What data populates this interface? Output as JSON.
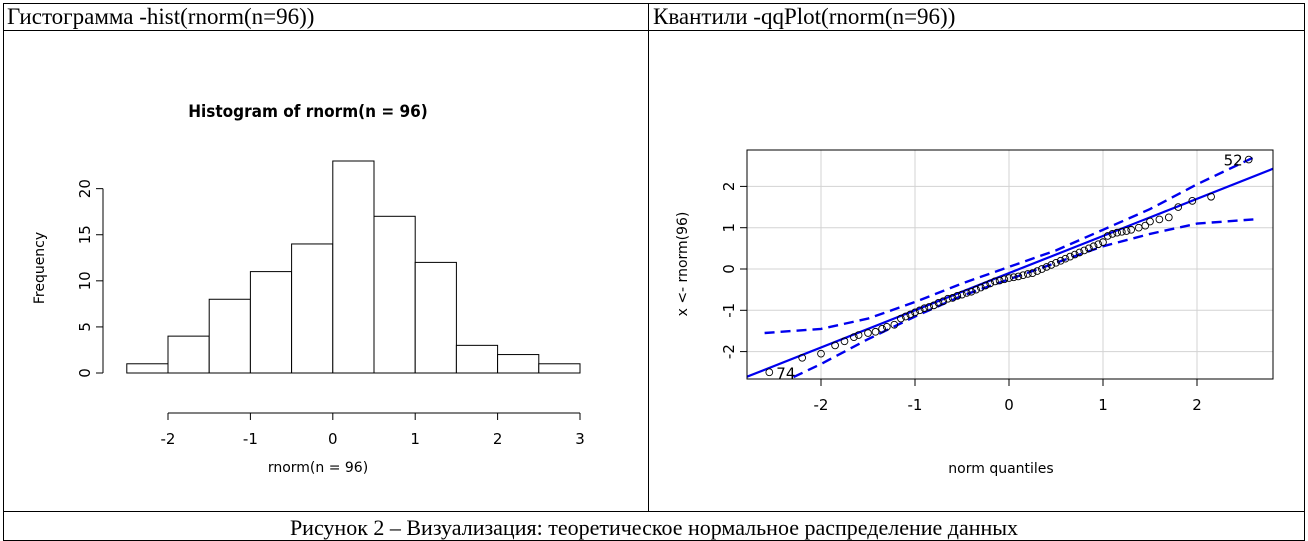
{
  "table": {
    "left_header": "Гистограмма -hist(rnorm(n=96))",
    "right_header": "Квантили -qqPlot(rnorm(n=96))",
    "caption": "Рисунок 2 – Визуализация: теоретическое нормальное распределение данных"
  },
  "chart_data": [
    {
      "type": "bar",
      "title": "Histogram of rnorm(n = 96)",
      "xlabel": "rnorm(n = 96)",
      "ylabel": "Frequency",
      "bins": [
        [
          -2.5,
          -2.0
        ],
        [
          -2.0,
          -1.5
        ],
        [
          -1.5,
          -1.0
        ],
        [
          -1.0,
          -0.5
        ],
        [
          -0.5,
          0.0
        ],
        [
          0.0,
          0.5
        ],
        [
          0.5,
          1.0
        ],
        [
          1.0,
          1.5
        ],
        [
          1.5,
          2.0
        ],
        [
          2.0,
          2.5
        ],
        [
          2.5,
          3.0
        ]
      ],
      "values": [
        1,
        4,
        8,
        11,
        14,
        23,
        17,
        12,
        3,
        2,
        1
      ],
      "xlim": [
        -2.5,
        3.0
      ],
      "ylim": [
        0,
        23
      ],
      "x_ticks": [
        "-2",
        "-1",
        "0",
        "1",
        "2",
        "3"
      ],
      "y_ticks": [
        "0",
        "5",
        "10",
        "15",
        "20"
      ],
      "grid": false
    },
    {
      "type": "scatter",
      "title": "",
      "xlabel": "norm quantiles",
      "ylabel": "x <- rnorm(96)",
      "xlim": [
        -2.8,
        2.8
      ],
      "ylim": [
        -2.7,
        2.9
      ],
      "x_ticks": [
        "-2",
        "-1",
        "0",
        "1",
        "2"
      ],
      "y_ticks": [
        "-2",
        "-1",
        "0",
        "1",
        "2"
      ],
      "grid": true,
      "point_labels": [
        {
          "label": "52",
          "x": 2.55,
          "y": 2.65
        },
        {
          "label": "74",
          "x": -2.55,
          "y": -2.5
        }
      ],
      "reference_line": {
        "slope": 0.9,
        "intercept": -0.1
      },
      "envelope_upper": [
        [
          -2.6,
          -1.55
        ],
        [
          -2.0,
          -1.45
        ],
        [
          -1.5,
          -1.2
        ],
        [
          -1.0,
          -0.8
        ],
        [
          -0.5,
          -0.35
        ],
        [
          0.0,
          0.05
        ],
        [
          0.5,
          0.45
        ],
        [
          1.0,
          0.95
        ],
        [
          1.5,
          1.45
        ],
        [
          2.0,
          2.05
        ],
        [
          2.6,
          2.7
        ]
      ],
      "envelope_lower": [
        [
          -2.6,
          -2.95
        ],
        [
          -2.0,
          -2.3
        ],
        [
          -1.5,
          -1.7
        ],
        [
          -1.0,
          -1.15
        ],
        [
          -0.5,
          -0.65
        ],
        [
          0.0,
          -0.25
        ],
        [
          0.5,
          0.15
        ],
        [
          1.0,
          0.55
        ],
        [
          1.5,
          0.85
        ],
        [
          2.0,
          1.1
        ],
        [
          2.6,
          1.2
        ]
      ],
      "points": [
        [
          -2.55,
          -2.5
        ],
        [
          -2.2,
          -2.15
        ],
        [
          -2.0,
          -2.05
        ],
        [
          -1.85,
          -1.85
        ],
        [
          -1.75,
          -1.75
        ],
        [
          -1.65,
          -1.65
        ],
        [
          -1.6,
          -1.6
        ],
        [
          -1.5,
          -1.55
        ],
        [
          -1.42,
          -1.52
        ],
        [
          -1.35,
          -1.45
        ],
        [
          -1.3,
          -1.4
        ],
        [
          -1.22,
          -1.35
        ],
        [
          -1.15,
          -1.2
        ],
        [
          -1.1,
          -1.15
        ],
        [
          -1.05,
          -1.1
        ],
        [
          -1.0,
          -1.05
        ],
        [
          -0.95,
          -1.0
        ],
        [
          -0.9,
          -0.95
        ],
        [
          -0.85,
          -0.92
        ],
        [
          -0.8,
          -0.88
        ],
        [
          -0.75,
          -0.82
        ],
        [
          -0.7,
          -0.78
        ],
        [
          -0.65,
          -0.72
        ],
        [
          -0.6,
          -0.7
        ],
        [
          -0.55,
          -0.65
        ],
        [
          -0.5,
          -0.62
        ],
        [
          -0.45,
          -0.58
        ],
        [
          -0.4,
          -0.55
        ],
        [
          -0.35,
          -0.5
        ],
        [
          -0.3,
          -0.45
        ],
        [
          -0.25,
          -0.4
        ],
        [
          -0.2,
          -0.35
        ],
        [
          -0.15,
          -0.3
        ],
        [
          -0.1,
          -0.28
        ],
        [
          -0.05,
          -0.25
        ],
        [
          0.0,
          -0.22
        ],
        [
          0.05,
          -0.2
        ],
        [
          0.1,
          -0.18
        ],
        [
          0.15,
          -0.15
        ],
        [
          0.2,
          -0.12
        ],
        [
          0.25,
          -0.1
        ],
        [
          0.3,
          -0.05
        ],
        [
          0.35,
          0.0
        ],
        [
          0.4,
          0.05
        ],
        [
          0.45,
          0.1
        ],
        [
          0.5,
          0.15
        ],
        [
          0.55,
          0.2
        ],
        [
          0.6,
          0.25
        ],
        [
          0.65,
          0.3
        ],
        [
          0.7,
          0.35
        ],
        [
          0.75,
          0.4
        ],
        [
          0.8,
          0.45
        ],
        [
          0.85,
          0.5
        ],
        [
          0.9,
          0.55
        ],
        [
          0.95,
          0.6
        ],
        [
          1.0,
          0.65
        ],
        [
          1.05,
          0.8
        ],
        [
          1.1,
          0.85
        ],
        [
          1.15,
          0.88
        ],
        [
          1.2,
          0.9
        ],
        [
          1.25,
          0.92
        ],
        [
          1.3,
          0.95
        ],
        [
          1.38,
          1.0
        ],
        [
          1.45,
          1.05
        ],
        [
          1.5,
          1.15
        ],
        [
          1.6,
          1.2
        ],
        [
          1.7,
          1.25
        ],
        [
          1.8,
          1.5
        ],
        [
          1.95,
          1.65
        ],
        [
          2.15,
          1.75
        ],
        [
          2.55,
          2.65
        ]
      ]
    }
  ]
}
